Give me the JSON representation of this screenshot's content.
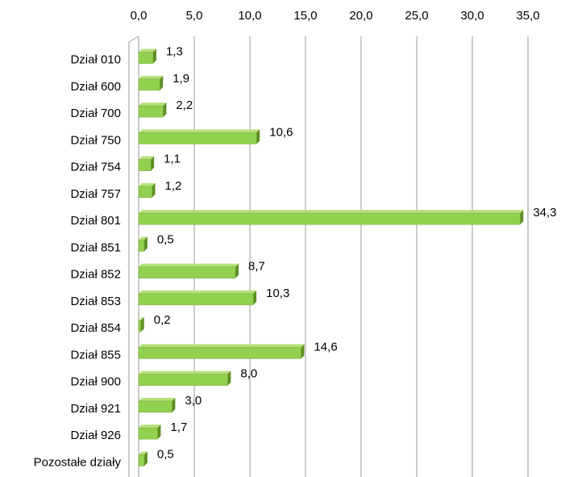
{
  "chart_data": {
    "type": "bar",
    "orientation": "horizontal",
    "categories": [
      "Dział 010",
      "Dział 600",
      "Dział 700",
      "Dział 750",
      "Dział 754",
      "Dział 757",
      "Dział 801",
      "Dział 851",
      "Dział 852",
      "Dział 853",
      "Dział 854",
      "Dział 855",
      "Dział 900",
      "Dział 921",
      "Dział 926",
      "Pozostałe działy"
    ],
    "values": [
      1.3,
      1.9,
      2.2,
      10.6,
      1.1,
      1.2,
      34.3,
      0.5,
      8.7,
      10.3,
      0.2,
      14.6,
      8.0,
      3.0,
      1.7,
      0.5
    ],
    "value_labels": [
      "1,3",
      "1,9",
      "2,2",
      "10,6",
      "1,1",
      "1,2",
      "34,3",
      "0,5",
      "8,7",
      "10,3",
      "0,2",
      "14,6",
      "8,0",
      "3,0",
      "1,7",
      "0,5"
    ],
    "color": "#92d050",
    "xlim": [
      0,
      35
    ],
    "xticks": [
      {
        "value": 0,
        "label": "0,0"
      },
      {
        "value": 5,
        "label": "5,0"
      },
      {
        "value": 10,
        "label": "10,0"
      },
      {
        "value": 15,
        "label": "15,0"
      },
      {
        "value": 20,
        "label": "20,0"
      },
      {
        "value": 25,
        "label": "25,0"
      },
      {
        "value": 30,
        "label": "30,0"
      },
      {
        "value": 35,
        "label": "35,0"
      }
    ],
    "grid": true
  }
}
